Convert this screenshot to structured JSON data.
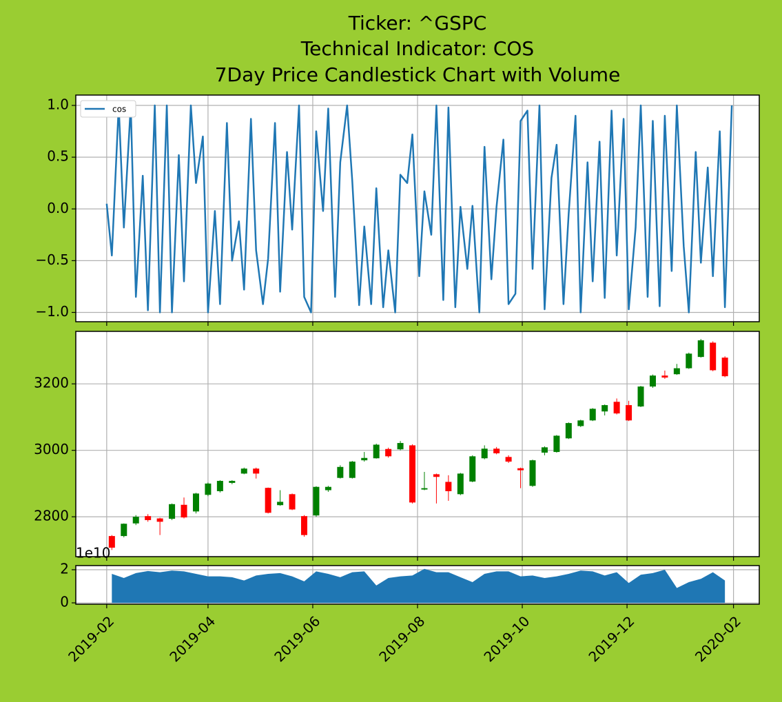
{
  "chart_data": [
    {
      "type": "line",
      "title": [
        "Ticker: ^GSPC",
        "Technical Indicator: COS",
        "7Day Price Candlestick Chart with Volume"
      ],
      "x": [
        "2019-02-01",
        "2019-02-04",
        "2019-02-08",
        "2019-02-11",
        "2019-02-15",
        "2019-02-18",
        "2019-02-22",
        "2019-02-25",
        "2019-03-01",
        "2019-03-04",
        "2019-03-08",
        "2019-03-11",
        "2019-03-15",
        "2019-03-18",
        "2019-03-22",
        "2019-03-25",
        "2019-03-29",
        "2019-04-01",
        "2019-04-05",
        "2019-04-08",
        "2019-04-12",
        "2019-04-15",
        "2019-04-19",
        "2019-04-22",
        "2019-04-26",
        "2019-04-29",
        "2019-05-03",
        "2019-05-06",
        "2019-05-10",
        "2019-05-13",
        "2019-05-17",
        "2019-05-20",
        "2019-05-24",
        "2019-05-27",
        "2019-05-31",
        "2019-06-03",
        "2019-06-07",
        "2019-06-10",
        "2019-06-14",
        "2019-06-17",
        "2019-06-21",
        "2019-06-24",
        "2019-06-28",
        "2019-07-01",
        "2019-07-05",
        "2019-07-08",
        "2019-07-12",
        "2019-07-15",
        "2019-07-19",
        "2019-07-22",
        "2019-07-26",
        "2019-07-29",
        "2019-08-02",
        "2019-08-05",
        "2019-08-09",
        "2019-08-12",
        "2019-08-16",
        "2019-08-19",
        "2019-08-23",
        "2019-08-26",
        "2019-08-30",
        "2019-09-02",
        "2019-09-06",
        "2019-09-09",
        "2019-09-13",
        "2019-09-16",
        "2019-09-20",
        "2019-09-23",
        "2019-09-27",
        "2019-09-30",
        "2019-10-04",
        "2019-10-07",
        "2019-10-11",
        "2019-10-14",
        "2019-10-18",
        "2019-10-21",
        "2019-10-25",
        "2019-10-28",
        "2019-11-01",
        "2019-11-04",
        "2019-11-08",
        "2019-11-11",
        "2019-11-15",
        "2019-11-18",
        "2019-11-22",
        "2019-11-25",
        "2019-11-29",
        "2019-12-02",
        "2019-12-06",
        "2019-12-09",
        "2019-12-13",
        "2019-12-16",
        "2019-12-20",
        "2019-12-23",
        "2019-12-27",
        "2019-12-30",
        "2020-01-03",
        "2020-01-06",
        "2020-01-10",
        "2020-01-13",
        "2020-01-17",
        "2020-01-20",
        "2020-01-24",
        "2020-01-27",
        "2020-01-31"
      ],
      "series": [
        {
          "name": "cos",
          "color": "#1f77b4",
          "values": [
            0.05,
            -0.45,
            1.0,
            -0.18,
            1.0,
            -0.85,
            0.32,
            -0.98,
            1.0,
            -1.0,
            1.0,
            -1.0,
            0.52,
            -0.7,
            1.0,
            0.25,
            0.7,
            -1.0,
            -0.02,
            -0.92,
            0.83,
            -0.5,
            -0.12,
            -0.78,
            0.87,
            -0.4,
            -0.92,
            -0.48,
            0.83,
            -0.8,
            0.55,
            -0.2,
            1.0,
            -0.85,
            -1.0,
            0.75,
            -0.02,
            0.97,
            -0.85,
            0.45,
            1.0,
            0.27,
            -0.93,
            -0.17,
            -0.92,
            0.2,
            -0.95,
            -0.4,
            -1.0,
            0.33,
            0.25,
            0.72,
            -0.65,
            0.17,
            -0.25,
            1.0,
            -0.88,
            0.98,
            -0.95,
            0.02,
            -0.58,
            0.03,
            -1.0,
            0.6,
            -0.68,
            0.02,
            0.67,
            -0.92,
            -0.82,
            0.85,
            0.95,
            -0.58,
            1.0,
            -0.97,
            0.3,
            0.62,
            -0.92,
            -0.05,
            0.9,
            -1.0,
            0.45,
            -0.7,
            0.65,
            -0.86,
            0.95,
            -0.45,
            0.87,
            -0.97,
            -0.18,
            1.0,
            -0.85,
            0.85,
            -0.94,
            0.9,
            -0.6,
            1.0,
            -0.36,
            -1.0,
            0.55,
            -0.52,
            0.4,
            -0.65,
            0.75,
            -0.95,
            1.0
          ]
        }
      ],
      "legend": "upper left",
      "ylim": [
        -1.09,
        1.1
      ],
      "yticks": [
        {
          "value": -1.0,
          "label": "−1.0"
        },
        {
          "value": -0.5,
          "label": "−0.5"
        },
        {
          "value": 0,
          "label": "0.0"
        },
        {
          "value": 0.5,
          "label": "0.5"
        },
        {
          "value": 1.0,
          "label": "1.0"
        }
      ],
      "grid": true
    },
    {
      "type": "candlestick",
      "x": [
        "2019-02-04",
        "2019-02-11",
        "2019-02-18",
        "2019-02-25",
        "2019-03-04",
        "2019-03-11",
        "2019-03-18",
        "2019-03-25",
        "2019-04-01",
        "2019-04-08",
        "2019-04-15",
        "2019-04-22",
        "2019-04-29",
        "2019-05-06",
        "2019-05-13",
        "2019-05-20",
        "2019-05-27",
        "2019-06-03",
        "2019-06-10",
        "2019-06-17",
        "2019-06-24",
        "2019-07-01",
        "2019-07-08",
        "2019-07-15",
        "2019-07-22",
        "2019-07-29",
        "2019-08-05",
        "2019-08-12",
        "2019-08-19",
        "2019-08-26",
        "2019-09-02",
        "2019-09-09",
        "2019-09-16",
        "2019-09-23",
        "2019-09-30",
        "2019-10-07",
        "2019-10-14",
        "2019-10-21",
        "2019-10-28",
        "2019-11-04",
        "2019-11-11",
        "2019-11-18",
        "2019-11-25",
        "2019-12-02",
        "2019-12-09",
        "2019-12-16",
        "2019-12-23",
        "2019-12-30",
        "2020-01-06",
        "2020-01-13",
        "2020-01-20",
        "2020-01-27"
      ],
      "open": [
        2742,
        2742,
        2780,
        2802,
        2795,
        2794,
        2836,
        2816,
        2866,
        2877,
        2902,
        2930,
        2945,
        2887,
        2835,
        2868,
        2802,
        2804,
        2880,
        2917,
        2917,
        2970,
        2976,
        3004,
        3003,
        3015,
        2882,
        2928,
        2905,
        2868,
        2906,
        2976,
        3005,
        2980,
        2946,
        2893,
        2993,
        2995,
        3036,
        3073,
        3090,
        3117,
        3146,
        3136,
        3132,
        3192,
        3225,
        3229,
        3247,
        3281,
        3324,
        3279
      ],
      "high": [
        2745,
        2780,
        2805,
        2808,
        2797,
        2840,
        2858,
        2872,
        2903,
        2910,
        2910,
        2948,
        2948,
        2888,
        2880,
        2870,
        2805,
        2892,
        2893,
        2955,
        2968,
        2995,
        3020,
        3008,
        3028,
        3018,
        2935,
        2930,
        2925,
        2932,
        2985,
        3015,
        3010,
        2985,
        2948,
        2972,
        3012,
        3046,
        3084,
        3092,
        3127,
        3138,
        3156,
        3149,
        3194,
        3228,
        3240,
        3260,
        3294,
        3335,
        3328,
        3283
      ],
      "low": [
        2700,
        2738,
        2775,
        2785,
        2745,
        2790,
        2795,
        2810,
        2862,
        2873,
        2898,
        2928,
        2915,
        2810,
        2833,
        2820,
        2740,
        2800,
        2875,
        2915,
        2915,
        2966,
        2975,
        2978,
        3000,
        2840,
        2880,
        2840,
        2848,
        2865,
        2904,
        2973,
        2988,
        2962,
        2886,
        2890,
        2985,
        2993,
        3034,
        3070,
        3088,
        3105,
        3108,
        3088,
        3130,
        3188,
        3215,
        3227,
        3245,
        3279,
        3238,
        3220
      ],
      "close": [
        2707,
        2779,
        2800,
        2790,
        2785,
        2838,
        2798,
        2870,
        2900,
        2908,
        2908,
        2945,
        2930,
        2812,
        2845,
        2822,
        2745,
        2890,
        2890,
        2950,
        2966,
        2977,
        3017,
        2982,
        3022,
        2843,
        2886,
        2920,
        2877,
        2930,
        2982,
        3005,
        2991,
        2966,
        2940,
        2970,
        3009,
        3044,
        3082,
        3090,
        3125,
        3136,
        3111,
        3090,
        3192,
        3225,
        3219,
        3247,
        3291,
        3331,
        3241,
        3223
      ],
      "up_color": "#008000",
      "down_color": "#ff0000",
      "ylim": [
        2680,
        3358
      ],
      "yticks": [
        2800,
        3000,
        3200
      ],
      "grid": true
    },
    {
      "type": "area",
      "x": [
        "2019-02-04",
        "2019-02-11",
        "2019-02-18",
        "2019-02-25",
        "2019-03-04",
        "2019-03-11",
        "2019-03-18",
        "2019-03-25",
        "2019-04-01",
        "2019-04-08",
        "2019-04-15",
        "2019-04-22",
        "2019-04-29",
        "2019-05-06",
        "2019-05-13",
        "2019-05-20",
        "2019-05-27",
        "2019-06-03",
        "2019-06-10",
        "2019-06-17",
        "2019-06-24",
        "2019-07-01",
        "2019-07-08",
        "2019-07-15",
        "2019-07-22",
        "2019-07-29",
        "2019-08-05",
        "2019-08-12",
        "2019-08-19",
        "2019-08-26",
        "2019-09-02",
        "2019-09-09",
        "2019-09-16",
        "2019-09-23",
        "2019-09-30",
        "2019-10-07",
        "2019-10-14",
        "2019-10-21",
        "2019-10-28",
        "2019-11-04",
        "2019-11-11",
        "2019-11-18",
        "2019-11-25",
        "2019-12-02",
        "2019-12-09",
        "2019-12-16",
        "2019-12-23",
        "2019-12-30",
        "2020-01-06",
        "2020-01-13",
        "2020-01-20",
        "2020-01-27"
      ],
      "values": [
        1.75,
        1.5,
        1.8,
        1.92,
        1.85,
        1.95,
        1.9,
        1.75,
        1.6,
        1.6,
        1.55,
        1.35,
        1.65,
        1.75,
        1.8,
        1.6,
        1.3,
        1.9,
        1.75,
        1.55,
        1.85,
        1.9,
        1.05,
        1.5,
        1.6,
        1.65,
        2.05,
        1.85,
        1.85,
        1.55,
        1.25,
        1.75,
        1.9,
        1.9,
        1.6,
        1.65,
        1.5,
        1.6,
        1.75,
        1.95,
        1.9,
        1.65,
        1.85,
        1.2,
        1.7,
        1.8,
        2.0,
        0.9,
        1.25,
        1.45,
        1.85,
        1.35
      ],
      "color": "#1f77b4",
      "y_offset_label": "1e10",
      "ylim": [
        -0.08,
        2.25
      ],
      "yticks": [
        0,
        2
      ],
      "grid": true,
      "xlim": [
        "2019-01-14",
        "2020-02-16"
      ],
      "xticks": [
        {
          "value": "2019-02-01",
          "label": "2019-02"
        },
        {
          "value": "2019-04-01",
          "label": "2019-04"
        },
        {
          "value": "2019-06-01",
          "label": "2019-06"
        },
        {
          "value": "2019-08-01",
          "label": "2019-08"
        },
        {
          "value": "2019-10-01",
          "label": "2019-10"
        },
        {
          "value": "2019-12-01",
          "label": "2019-12"
        },
        {
          "value": "2020-02-01",
          "label": "2020-02"
        }
      ]
    }
  ]
}
